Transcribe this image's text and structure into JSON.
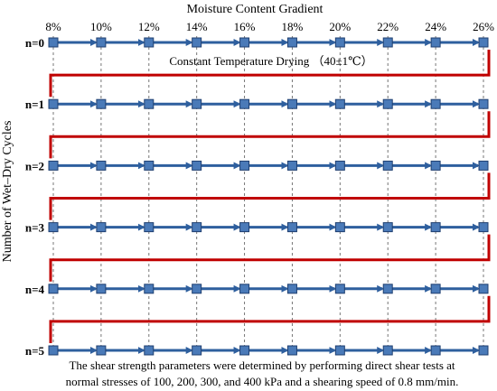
{
  "title": "Moisture Content Gradient",
  "y_axis_label": "Number of Wet–Dry Cycles",
  "moisture_levels": [
    "8%",
    "10%",
    "12%",
    "14%",
    "16%",
    "18%",
    "20%",
    "22%",
    "24%",
    "26%"
  ],
  "cycles": [
    "n=0",
    "n=1",
    "n=2",
    "n=3",
    "n=4",
    "n=5"
  ],
  "drying_label": "Constant Temperature Drying （40±1℃）",
  "caption": [
    "The shear strength parameters were determined by performing direct shear tests at",
    "normal stresses of 100, 200, 300, and 400 kPa and a shearing speed of 0.8 mm/min."
  ],
  "colors": {
    "node_fill": "#4a7ab8",
    "node_stroke": "#1f3f70",
    "arrow": "#2e5f9e",
    "path_red": "#c00000",
    "grid": "#777777"
  }
}
